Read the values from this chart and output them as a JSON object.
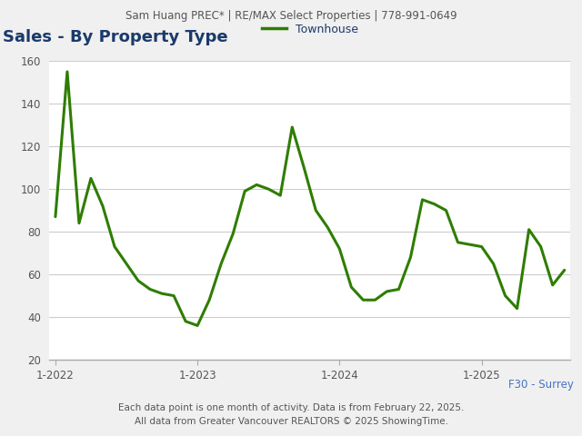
{
  "header": "Sam Huang PREC* | RE/MAX Select Properties | 778-991-0649",
  "title": "Sales - By Property Type",
  "legend_label": "Townhouse",
  "line_color": "#2e7d00",
  "footer1": "Each data point is one month of activity. Data is from February 22, 2025.",
  "footer2": "All data from Greater Vancouver REALTORS © 2025 ShowingTime.",
  "region_label": "F30 - Surrey",
  "region_color": "#4472c4",
  "ylim": [
    20,
    160
  ],
  "yticks": [
    20,
    40,
    60,
    80,
    100,
    120,
    140,
    160
  ],
  "x_tick_labels": [
    "1-2022",
    "1-2023",
    "1-2024",
    "1-2025"
  ],
  "x_tick_positions": [
    0,
    12,
    24,
    36
  ],
  "values": [
    87,
    155,
    84,
    105,
    92,
    73,
    65,
    57,
    53,
    51,
    50,
    38,
    36,
    48,
    65,
    79,
    99,
    102,
    100,
    97,
    129,
    110,
    90,
    82,
    72,
    54,
    48,
    48,
    52,
    53,
    68,
    95,
    93,
    90,
    75,
    74,
    73,
    65,
    50,
    44,
    81,
    73,
    55,
    62
  ],
  "background_color": "#f0f0f0",
  "plot_bg_color": "#ffffff",
  "grid_color": "#cccccc",
  "title_color": "#1a3a6b",
  "header_color": "#555555",
  "footer_color": "#555555",
  "tick_color": "#555555",
  "spine_color": "#aaaaaa"
}
